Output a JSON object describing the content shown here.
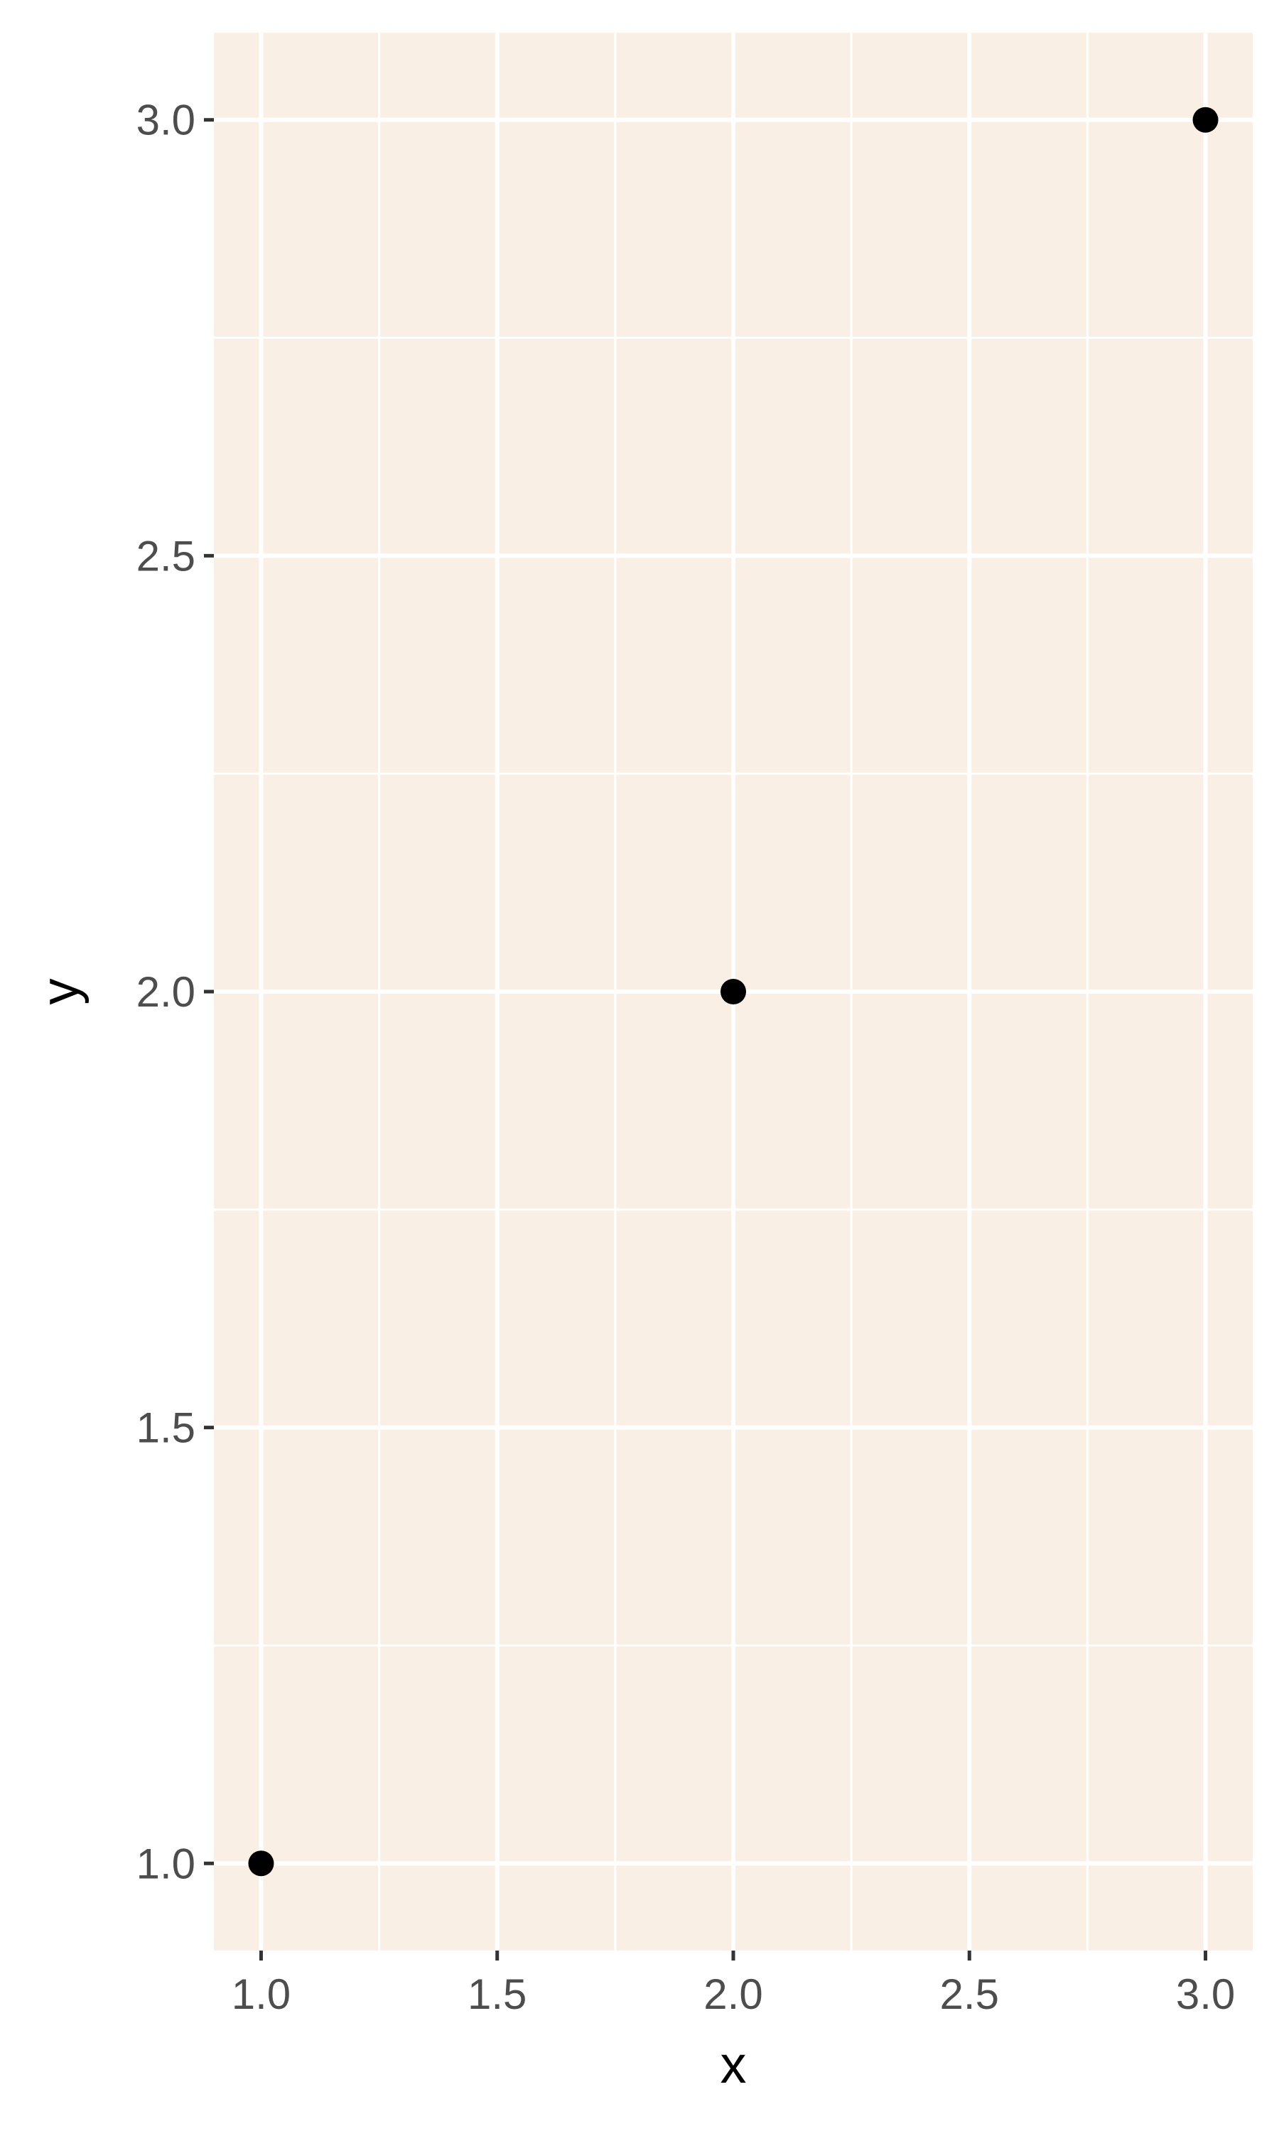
{
  "chart_data": {
    "type": "scatter",
    "x": [
      1,
      2,
      3
    ],
    "y": [
      1,
      2,
      3
    ],
    "xlabel": "x",
    "ylabel": "y",
    "xlim": [
      0.9,
      3.1
    ],
    "ylim": [
      0.9,
      3.1
    ],
    "xticks": [
      1.0,
      1.5,
      2.0,
      2.5,
      3.0
    ],
    "yticks": [
      1.0,
      1.5,
      2.0,
      2.5,
      3.0
    ],
    "xtick_labels": [
      "1.0",
      "1.5",
      "2.0",
      "2.5",
      "3.0"
    ],
    "ytick_labels": [
      "1.0",
      "1.5",
      "2.0",
      "2.5",
      "3.0"
    ],
    "grid": true,
    "legend": "none",
    "colors": {
      "panel_background": "#faefe5",
      "grid": "#ffffff",
      "point": "#000000",
      "tick_text": "#4d4d4d",
      "axis_title": "#000000"
    }
  }
}
